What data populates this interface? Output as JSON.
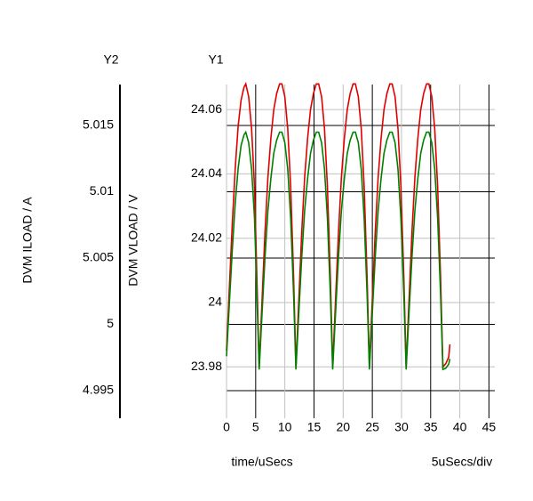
{
  "chart_data": {
    "type": "line",
    "y1_header": "Y1",
    "y2_header": "Y2",
    "ylabel": "DVM VLOAD / V",
    "y2label": "DVM ILOAD / A",
    "xlabel": "time/uSecs",
    "annotation": "5uSecs/div",
    "x": [
      0,
      0.5,
      1,
      1.5,
      2,
      2.5,
      3,
      3.3,
      3.8,
      4.3,
      4.8,
      5.2,
      5.6,
      6.1,
      6.6,
      7.1,
      7.6,
      8.1,
      8.6,
      9.1,
      9.5,
      10,
      10.5,
      11,
      11.5,
      11.9,
      12.4,
      12.9,
      13.4,
      13.9,
      14.4,
      14.9,
      15.4,
      15.8,
      16.3,
      16.8,
      17.3,
      17.8,
      18.2,
      18.7,
      19.2,
      19.7,
      20.2,
      20.7,
      21.2,
      21.7,
      22.1,
      22.6,
      23.1,
      23.6,
      24.1,
      24.5,
      25,
      25.5,
      26,
      26.5,
      27,
      27.5,
      28,
      28.4,
      28.9,
      29.4,
      29.9,
      30.4,
      30.8,
      31.3,
      31.8,
      32.3,
      32.8,
      33.3,
      33.8,
      34.3,
      34.7,
      35.2,
      35.7,
      36.2,
      36.7,
      37.1,
      37.6,
      38.1,
      38.3
    ],
    "series": [
      {
        "color": "#e00000",
        "axis": "y",
        "values": [
          23.985,
          24.005,
          24.025,
          24.042,
          24.055,
          24.063,
          24.067,
          24.068,
          24.064,
          24.054,
          24.036,
          24.008,
          23.98,
          24.001,
          24.022,
          24.039,
          24.051,
          24.06,
          24.065,
          24.068,
          24.068,
          24.064,
          24.054,
          24.036,
          24.008,
          23.98,
          24.001,
          24.022,
          24.039,
          24.051,
          24.06,
          24.065,
          24.068,
          24.068,
          24.064,
          24.054,
          24.036,
          24.008,
          23.98,
          24.001,
          24.022,
          24.039,
          24.051,
          24.06,
          24.065,
          24.068,
          24.068,
          24.064,
          24.054,
          24.036,
          24.008,
          23.98,
          24.001,
          24.022,
          24.039,
          24.051,
          24.06,
          24.065,
          24.068,
          24.068,
          24.064,
          24.054,
          24.036,
          24.008,
          23.98,
          24.001,
          24.022,
          24.039,
          24.051,
          24.06,
          24.065,
          24.068,
          24.068,
          24.064,
          24.054,
          24.036,
          24.008,
          23.98,
          23.981,
          23.983,
          23.987
        ]
      },
      {
        "color": "#008000",
        "axis": "y2",
        "values": [
          4.9976,
          5.0017,
          5.0057,
          5.0092,
          5.0118,
          5.0135,
          5.0143,
          5.0145,
          5.0137,
          5.0117,
          5.008,
          5.0023,
          4.9966,
          5.0009,
          5.0051,
          5.0086,
          5.011,
          5.0129,
          5.0139,
          5.0145,
          5.0145,
          5.0137,
          5.0117,
          5.008,
          5.0023,
          4.9966,
          5.0009,
          5.0051,
          5.0086,
          5.011,
          5.0129,
          5.0139,
          5.0145,
          5.0145,
          5.0137,
          5.0117,
          5.008,
          5.0023,
          4.9966,
          5.0009,
          5.0051,
          5.0086,
          5.011,
          5.0129,
          5.0139,
          5.0145,
          5.0145,
          5.0137,
          5.0117,
          5.008,
          5.0023,
          4.9966,
          5.0009,
          5.0051,
          5.0086,
          5.011,
          5.0129,
          5.0139,
          5.0145,
          5.0145,
          5.0137,
          5.0117,
          5.008,
          5.0023,
          4.9966,
          5.0009,
          5.0051,
          5.0086,
          5.011,
          5.0129,
          5.0139,
          5.0145,
          5.0145,
          5.0137,
          5.0117,
          5.008,
          5.0023,
          4.9966,
          4.9967,
          4.997,
          4.9974
        ]
      }
    ],
    "xlim": [
      0,
      46
    ],
    "xticks": [
      0,
      5,
      10,
      15,
      20,
      25,
      30,
      35,
      40,
      45
    ],
    "ylim": [
      23.964,
      24.0678
    ],
    "yticks": [
      23.98,
      24,
      24.02,
      24.04,
      24.06
    ],
    "y2lim": [
      4.99292,
      5.01809
    ],
    "y2ticks": [
      4.995,
      5,
      5.005,
      5.01,
      5.015
    ],
    "grid": true
  }
}
